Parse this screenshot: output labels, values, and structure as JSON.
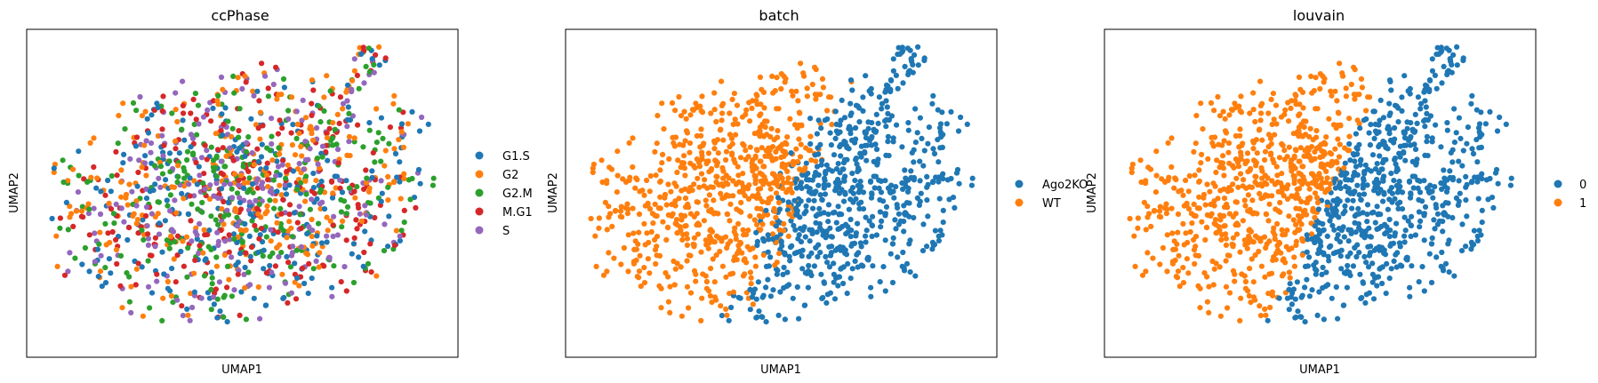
{
  "figure": {
    "panels": [
      {
        "title": "ccPhase",
        "xlabel": "UMAP1",
        "ylabel": "UMAP2",
        "legend": [
          {
            "label": "G1.S",
            "color": "#1f77b4"
          },
          {
            "label": "G2",
            "color": "#ff7f0e"
          },
          {
            "label": "G2.M",
            "color": "#2ca02c"
          },
          {
            "label": "M.G1",
            "color": "#d62728"
          },
          {
            "label": "S",
            "color": "#9467bd"
          }
        ]
      },
      {
        "title": "batch",
        "xlabel": "UMAP1",
        "ylabel": "UMAP2",
        "legend": [
          {
            "label": "Ago2KO",
            "color": "#1f77b4"
          },
          {
            "label": "WT",
            "color": "#ff7f0e"
          }
        ]
      },
      {
        "title": "louvain",
        "xlabel": "UMAP1",
        "ylabel": "UMAP2",
        "legend": [
          {
            "label": "0",
            "color": "#1f77b4"
          },
          {
            "label": "1",
            "color": "#ff7f0e"
          }
        ]
      }
    ]
  },
  "chart_data": [
    {
      "type": "scatter",
      "title": "ccPhase",
      "xlabel": "UMAP1",
      "ylabel": "UMAP2",
      "xticks": [],
      "yticks": [],
      "legend_position": "right-outside",
      "point_count_approx": 1300,
      "series": [
        {
          "name": "G1.S",
          "color": "#1f77b4"
        },
        {
          "name": "G2",
          "color": "#ff7f0e"
        },
        {
          "name": "G2.M",
          "color": "#2ca02c"
        },
        {
          "name": "M.G1",
          "color": "#d62728"
        },
        {
          "name": "S",
          "color": "#9467bd"
        }
      ]
    },
    {
      "type": "scatter",
      "title": "batch",
      "xlabel": "UMAP1",
      "ylabel": "UMAP2",
      "xticks": [],
      "yticks": [],
      "legend_position": "right-outside",
      "point_count_approx": 1300,
      "series": [
        {
          "name": "Ago2KO",
          "color": "#1f77b4"
        },
        {
          "name": "WT",
          "color": "#ff7f0e"
        }
      ]
    },
    {
      "type": "scatter",
      "title": "louvain",
      "xlabel": "UMAP1",
      "ylabel": "UMAP2",
      "xticks": [],
      "yticks": [],
      "legend_position": "right-outside",
      "point_count_approx": 1300,
      "series": [
        {
          "name": "0",
          "color": "#1f77b4"
        },
        {
          "name": "1",
          "color": "#ff7f0e"
        }
      ]
    }
  ]
}
